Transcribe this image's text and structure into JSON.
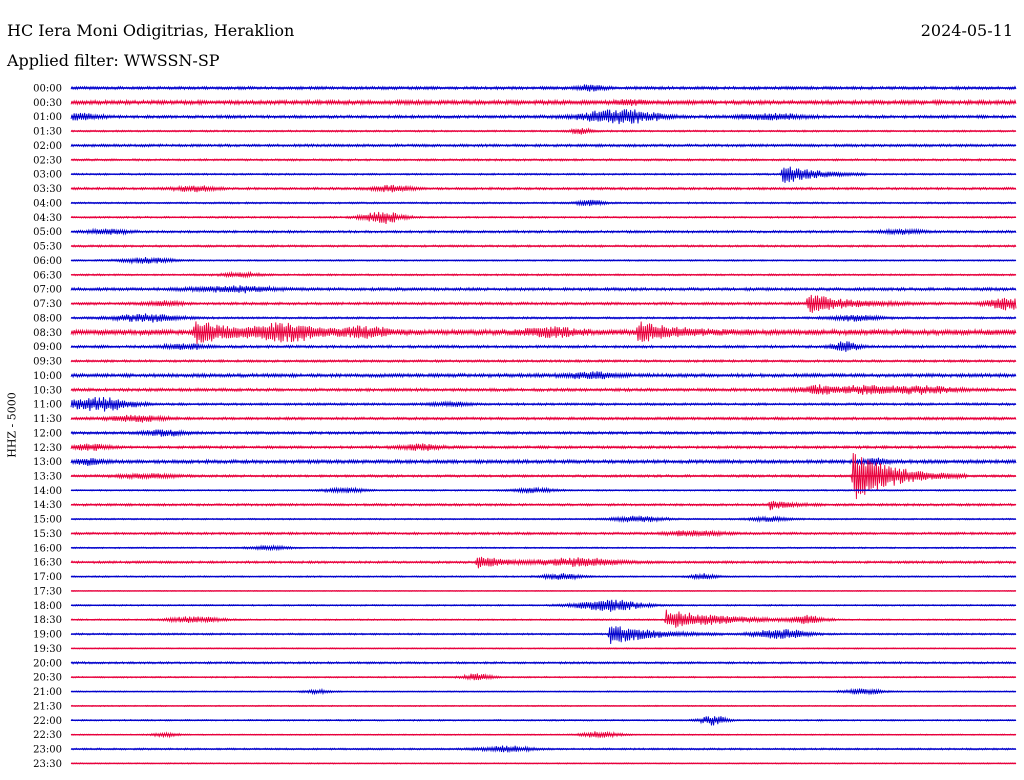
{
  "header": {
    "station": "HC Iera Moni Odigitrias, Heraklion",
    "date": "2024-05-11",
    "filter": "Applied filter: WWSSN-SP"
  },
  "channel_label": "HHZ - 5000",
  "colors": {
    "even_trace": "#0000cc",
    "odd_trace": "#e8003c",
    "background": "#ffffff"
  },
  "chart_data": {
    "type": "line",
    "title": "HC Iera Moni Odigitrias, Heraklion",
    "ylabel": "HHZ - 5000",
    "xlabel": "",
    "time_labels": [
      "00:00",
      "00:30",
      "01:00",
      "01:30",
      "02:00",
      "02:30",
      "03:00",
      "03:30",
      "04:00",
      "04:30",
      "05:00",
      "05:30",
      "06:00",
      "06:30",
      "07:00",
      "07:30",
      "08:00",
      "08:30",
      "09:00",
      "09:30",
      "10:00",
      "10:30",
      "11:00",
      "11:30",
      "12:00",
      "12:30",
      "13:00",
      "13:30",
      "14:00",
      "14:30",
      "15:00",
      "15:30",
      "16:00",
      "16:30",
      "17:00",
      "17:30",
      "18:00",
      "18:30",
      "19:00",
      "19:30",
      "20:00",
      "20:30",
      "21:00",
      "21:30",
      "22:00",
      "22:30",
      "23:00",
      "23:30"
    ],
    "row_minutes": 30,
    "noise_level": [
      1,
      1.4,
      1,
      0.6,
      0.9,
      0.7,
      0.6,
      0.8,
      0.6,
      0.6,
      0.8,
      0.7,
      0.5,
      0.6,
      1,
      0.9,
      0.7,
      1.8,
      0.9,
      0.8,
      1.2,
      1,
      0.8,
      0.9,
      0.9,
      0.9,
      1.2,
      0.8,
      0.5,
      0.8,
      0.5,
      0.8,
      0.5,
      0.8,
      0.5,
      0.3,
      0.5,
      0.5,
      0.6,
      0.4,
      0.7,
      0.5,
      0.4,
      0.4,
      0.5,
      0.4,
      0.6,
      0.4
    ],
    "events": [
      {
        "row": 0,
        "pos": 0.55,
        "amp": 3,
        "dur": 0.02
      },
      {
        "row": 1,
        "pos": 0.59,
        "amp": 2.5,
        "dur": 0.02
      },
      {
        "row": 2,
        "pos": 0.58,
        "amp": 7,
        "dur": 0.06
      },
      {
        "row": 2,
        "pos": 0.74,
        "amp": 3,
        "dur": 0.05
      },
      {
        "row": 2,
        "pos": 0.01,
        "amp": 3,
        "dur": 0.03
      },
      {
        "row": 3,
        "pos": 0.54,
        "amp": 3,
        "dur": 0.015
      },
      {
        "row": 6,
        "pos": 0.753,
        "amp": 11,
        "dur": 0.03,
        "impulsive": true
      },
      {
        "row": 7,
        "pos": 0.13,
        "amp": 3,
        "dur": 0.03
      },
      {
        "row": 7,
        "pos": 0.34,
        "amp": 3,
        "dur": 0.03
      },
      {
        "row": 8,
        "pos": 0.55,
        "amp": 3,
        "dur": 0.02
      },
      {
        "row": 9,
        "pos": 0.33,
        "amp": 6,
        "dur": 0.03
      },
      {
        "row": 10,
        "pos": 0.04,
        "amp": 2.5,
        "dur": 0.03
      },
      {
        "row": 10,
        "pos": 0.88,
        "amp": 2.5,
        "dur": 0.03
      },
      {
        "row": 12,
        "pos": 0.08,
        "amp": 3,
        "dur": 0.04
      },
      {
        "row": 13,
        "pos": 0.18,
        "amp": 2,
        "dur": 0.03
      },
      {
        "row": 14,
        "pos": 0.17,
        "amp": 3,
        "dur": 0.06
      },
      {
        "row": 15,
        "pos": 0.78,
        "amp": 10,
        "dur": 0.04,
        "impulsive": true
      },
      {
        "row": 15,
        "pos": 0.99,
        "amp": 6,
        "dur": 0.03
      },
      {
        "row": 15,
        "pos": 0.1,
        "amp": 2,
        "dur": 0.03
      },
      {
        "row": 16,
        "pos": 0.08,
        "amp": 4,
        "dur": 0.05
      },
      {
        "row": 16,
        "pos": 0.83,
        "amp": 3,
        "dur": 0.04
      },
      {
        "row": 17,
        "pos": 0.13,
        "amp": 11,
        "dur": 0.04,
        "impulsive": true
      },
      {
        "row": 17,
        "pos": 0.23,
        "amp": 8,
        "dur": 0.05
      },
      {
        "row": 17,
        "pos": 0.31,
        "amp": 5,
        "dur": 0.04
      },
      {
        "row": 17,
        "pos": 0.51,
        "amp": 5,
        "dur": 0.04
      },
      {
        "row": 17,
        "pos": 0.6,
        "amp": 9,
        "dur": 0.04,
        "impulsive": true
      },
      {
        "row": 18,
        "pos": 0.12,
        "amp": 3,
        "dur": 0.03
      },
      {
        "row": 18,
        "pos": 0.82,
        "amp": 5,
        "dur": 0.02
      },
      {
        "row": 20,
        "pos": 0.55,
        "amp": 3,
        "dur": 0.04
      },
      {
        "row": 21,
        "pos": 0.79,
        "amp": 4,
        "dur": 0.03
      },
      {
        "row": 21,
        "pos": 0.84,
        "amp": 4,
        "dur": 0.04
      },
      {
        "row": 21,
        "pos": 0.9,
        "amp": 4,
        "dur": 0.05
      },
      {
        "row": 22,
        "pos": 0.03,
        "amp": 7,
        "dur": 0.05
      },
      {
        "row": 22,
        "pos": 0.4,
        "amp": 2,
        "dur": 0.03
      },
      {
        "row": 23,
        "pos": 0.07,
        "amp": 3,
        "dur": 0.04
      },
      {
        "row": 24,
        "pos": 0.1,
        "amp": 3,
        "dur": 0.03
      },
      {
        "row": 25,
        "pos": 0.02,
        "amp": 3,
        "dur": 0.03
      },
      {
        "row": 25,
        "pos": 0.37,
        "amp": 3,
        "dur": 0.03
      },
      {
        "row": 26,
        "pos": 0.02,
        "amp": 3,
        "dur": 0.02
      },
      {
        "row": 26,
        "pos": 0.85,
        "amp": 3,
        "dur": 0.02
      },
      {
        "row": 27,
        "pos": 0.828,
        "amp": 26,
        "dur": 0.04,
        "impulsive": true
      },
      {
        "row": 27,
        "pos": 0.08,
        "amp": 2,
        "dur": 0.05
      },
      {
        "row": 28,
        "pos": 0.29,
        "amp": 2.5,
        "dur": 0.03
      },
      {
        "row": 28,
        "pos": 0.49,
        "amp": 2.5,
        "dur": 0.03
      },
      {
        "row": 29,
        "pos": 0.74,
        "amp": 5,
        "dur": 0.02,
        "impulsive": true
      },
      {
        "row": 30,
        "pos": 0.6,
        "amp": 3,
        "dur": 0.04
      },
      {
        "row": 30,
        "pos": 0.74,
        "amp": 2.5,
        "dur": 0.03
      },
      {
        "row": 31,
        "pos": 0.66,
        "amp": 3,
        "dur": 0.04
      },
      {
        "row": 32,
        "pos": 0.21,
        "amp": 2,
        "dur": 0.03
      },
      {
        "row": 33,
        "pos": 0.43,
        "amp": 6,
        "dur": 0.03,
        "impulsive": true
      },
      {
        "row": 33,
        "pos": 0.54,
        "amp": 4,
        "dur": 0.06
      },
      {
        "row": 34,
        "pos": 0.52,
        "amp": 3,
        "dur": 0.03
      },
      {
        "row": 34,
        "pos": 0.67,
        "amp": 3,
        "dur": 0.02
      },
      {
        "row": 36,
        "pos": 0.57,
        "amp": 6,
        "dur": 0.05
      },
      {
        "row": 37,
        "pos": 0.13,
        "amp": 3,
        "dur": 0.04
      },
      {
        "row": 37,
        "pos": 0.63,
        "amp": 10,
        "dur": 0.06,
        "impulsive": true
      },
      {
        "row": 37,
        "pos": 0.78,
        "amp": 4,
        "dur": 0.02
      },
      {
        "row": 38,
        "pos": 0.57,
        "amp": 11,
        "dur": 0.04,
        "impulsive": true
      },
      {
        "row": 38,
        "pos": 0.75,
        "amp": 5,
        "dur": 0.04
      },
      {
        "row": 41,
        "pos": 0.43,
        "amp": 4,
        "dur": 0.02
      },
      {
        "row": 42,
        "pos": 0.26,
        "amp": 2,
        "dur": 0.02
      },
      {
        "row": 42,
        "pos": 0.84,
        "amp": 3,
        "dur": 0.03
      },
      {
        "row": 44,
        "pos": 0.68,
        "amp": 5,
        "dur": 0.02
      },
      {
        "row": 45,
        "pos": 0.56,
        "amp": 3,
        "dur": 0.03
      },
      {
        "row": 45,
        "pos": 0.1,
        "amp": 2,
        "dur": 0.02
      },
      {
        "row": 46,
        "pos": 0.46,
        "amp": 3,
        "dur": 0.04
      }
    ]
  }
}
